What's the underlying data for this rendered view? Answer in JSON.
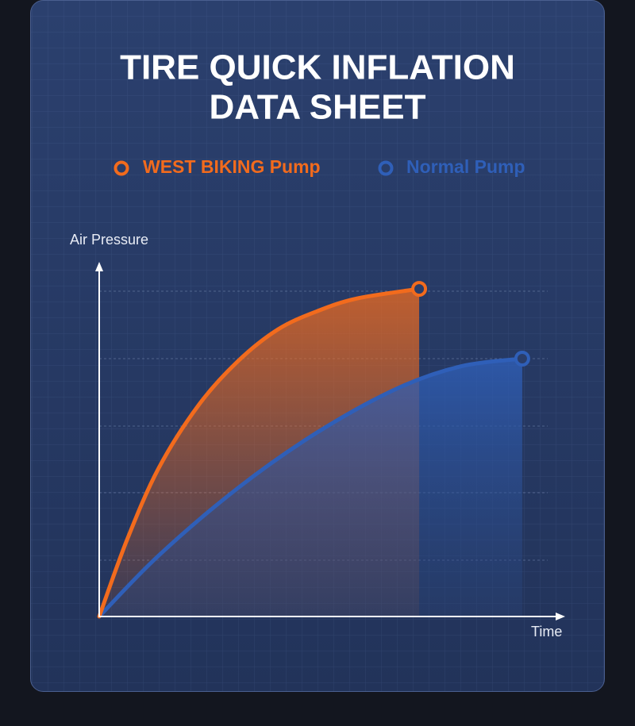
{
  "chart_data": {
    "type": "line",
    "title": [
      "TIRE QUICK INFLATION",
      "DATA SHEET"
    ],
    "xlabel": "Time",
    "ylabel": "Air Pressure",
    "xlim": [
      0,
      100
    ],
    "ylim": [
      0,
      100
    ],
    "series": [
      {
        "name": "WEST BIKING Pump",
        "color": "#f26b1d",
        "x": [
          0,
          6,
          12.8,
          21.4,
          29.9,
          38.5,
          47,
          55.6,
          68.9
        ],
        "values": [
          0,
          21.8,
          42.1,
          60,
          72.5,
          81.5,
          86.7,
          90.3,
          93
        ]
      },
      {
        "name": "Normal Pump",
        "color": "#2f5fb8",
        "x": [
          0,
          12.8,
          29.9,
          47,
          64.1,
          77.8,
          91.1
        ],
        "values": [
          0,
          17.3,
          36.5,
          52.3,
          64.7,
          71,
          73.2
        ]
      }
    ]
  }
}
